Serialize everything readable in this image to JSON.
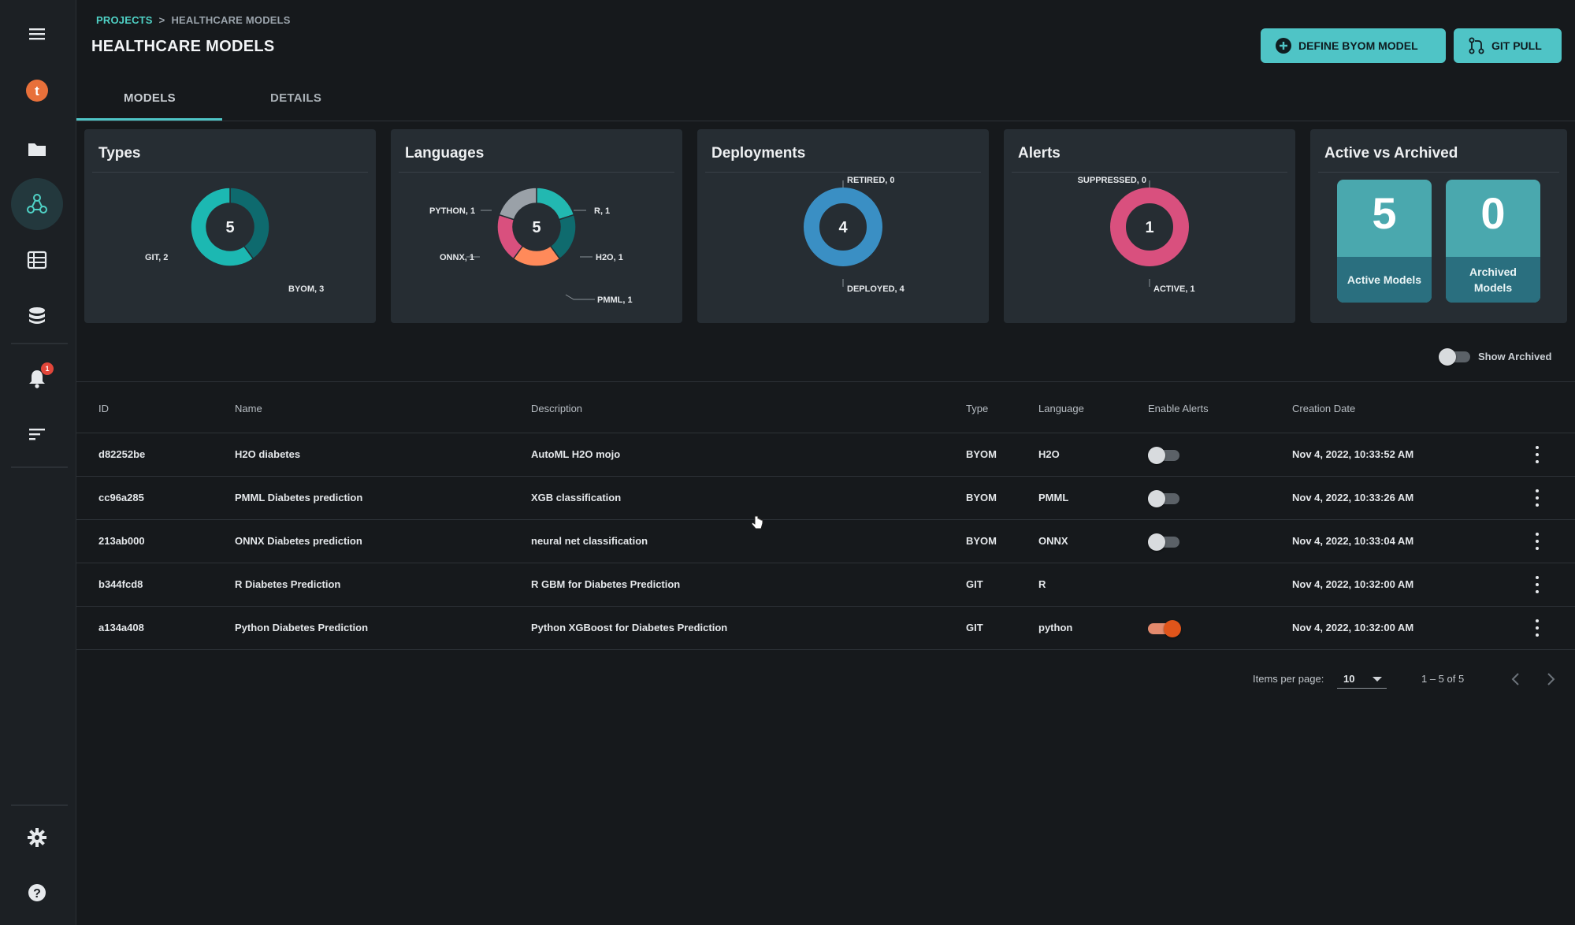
{
  "breadcrumb": {
    "root": "PROJECTS",
    "separator": ">",
    "current": "HEALTHCARE MODELS"
  },
  "page_title": "HEALTHCARE MODELS",
  "actions": {
    "define_byom": "DEFINE BYOM MODEL",
    "git_pull": "GIT PULL"
  },
  "sidebar": {
    "logo_letter": "t",
    "items": [
      "menu-icon",
      "logo",
      "folder-icon",
      "models-icon",
      "table-icon",
      "database-icon",
      "bell-icon",
      "sort-icon",
      "gear-icon",
      "help-icon"
    ],
    "notification_count": "1"
  },
  "tabs": [
    {
      "label": "MODELS",
      "active": true
    },
    {
      "label": "DETAILS",
      "active": false
    }
  ],
  "cards": {
    "types": {
      "title": "Types",
      "center": "5",
      "labels": {
        "git": "GIT, 2",
        "byom": "BYOM, 3"
      }
    },
    "languages": {
      "title": "Languages",
      "center": "5",
      "labels": {
        "python": "PYTHON, 1",
        "r": "R, 1",
        "onnx": "ONNX, 1",
        "h2o": "H2O, 1",
        "pmml": "PMML, 1"
      }
    },
    "deployments": {
      "title": "Deployments",
      "center": "4",
      "labels": {
        "retired": "RETIRED, 0",
        "deployed": "DEPLOYED, 4"
      }
    },
    "alerts": {
      "title": "Alerts",
      "center": "1",
      "labels": {
        "suppressed": "SUPPRESSED, 0",
        "active": "ACTIVE, 1"
      }
    },
    "active_vs_archived": {
      "title": "Active vs Archived",
      "active": {
        "value": "5",
        "label": "Active Models"
      },
      "archived": {
        "value": "0",
        "label": "Archived Models"
      }
    }
  },
  "chart_data": [
    {
      "type": "pie",
      "title": "Types",
      "categories": [
        "GIT",
        "BYOM"
      ],
      "values": [
        2,
        3
      ],
      "colors": [
        "#0e6a6e",
        "#1cb8b2"
      ]
    },
    {
      "type": "pie",
      "title": "Languages",
      "categories": [
        "R",
        "H2O",
        "PMML",
        "ONNX",
        "PYTHON"
      ],
      "values": [
        1,
        1,
        1,
        1,
        1
      ],
      "colors": [
        "#22b8b1",
        "#0f6b6e",
        "#ff8a5a",
        "#d9507e",
        "#9aa1a8"
      ]
    },
    {
      "type": "pie",
      "title": "Deployments",
      "categories": [
        "RETIRED",
        "DEPLOYED"
      ],
      "values": [
        0,
        4
      ],
      "colors": [
        "#3a4148",
        "#3a8fc4"
      ]
    },
    {
      "type": "pie",
      "title": "Alerts",
      "categories": [
        "SUPPRESSED",
        "ACTIVE"
      ],
      "values": [
        0,
        1
      ],
      "colors": [
        "#3a4148",
        "#d9507e"
      ]
    }
  ],
  "show_archived": {
    "label": "Show Archived",
    "on": false
  },
  "table": {
    "headers": {
      "id": "ID",
      "name": "Name",
      "description": "Description",
      "type": "Type",
      "language": "Language",
      "alerts": "Enable Alerts",
      "date": "Creation Date"
    },
    "rows": [
      {
        "id": "d82252be",
        "name": "H2O diabetes",
        "description": "AutoML H2O mojo",
        "type": "BYOM",
        "language": "H2O",
        "alerts": false,
        "date": "Nov 4, 2022, 10:33:52 AM"
      },
      {
        "id": "cc96a285",
        "name": "PMML Diabetes prediction",
        "description": "XGB classification",
        "type": "BYOM",
        "language": "PMML",
        "alerts": false,
        "date": "Nov 4, 2022, 10:33:26 AM"
      },
      {
        "id": "213ab000",
        "name": "ONNX Diabetes prediction",
        "description": "neural net classification",
        "type": "BYOM",
        "language": "ONNX",
        "alerts": false,
        "date": "Nov 4, 2022, 10:33:04 AM"
      },
      {
        "id": "b344fcd8",
        "name": "R Diabetes Prediction",
        "description": "R GBM for Diabetes Prediction",
        "type": "GIT",
        "language": "R",
        "alerts": null,
        "date": "Nov 4, 2022, 10:32:00 AM"
      },
      {
        "id": "a134a408",
        "name": "Python Diabetes Prediction",
        "description": "Python XGBoost for Diabetes Prediction",
        "type": "GIT",
        "language": "python",
        "alerts": true,
        "date": "Nov 4, 2022, 10:32:00 AM"
      }
    ]
  },
  "pagination": {
    "items_per_page_label": "Items per page:",
    "items_per_page": "10",
    "range": "1 – 5 of 5"
  },
  "colors": {
    "accent": "#4fc4c6",
    "background": "#16191c",
    "card": "#262d33"
  }
}
